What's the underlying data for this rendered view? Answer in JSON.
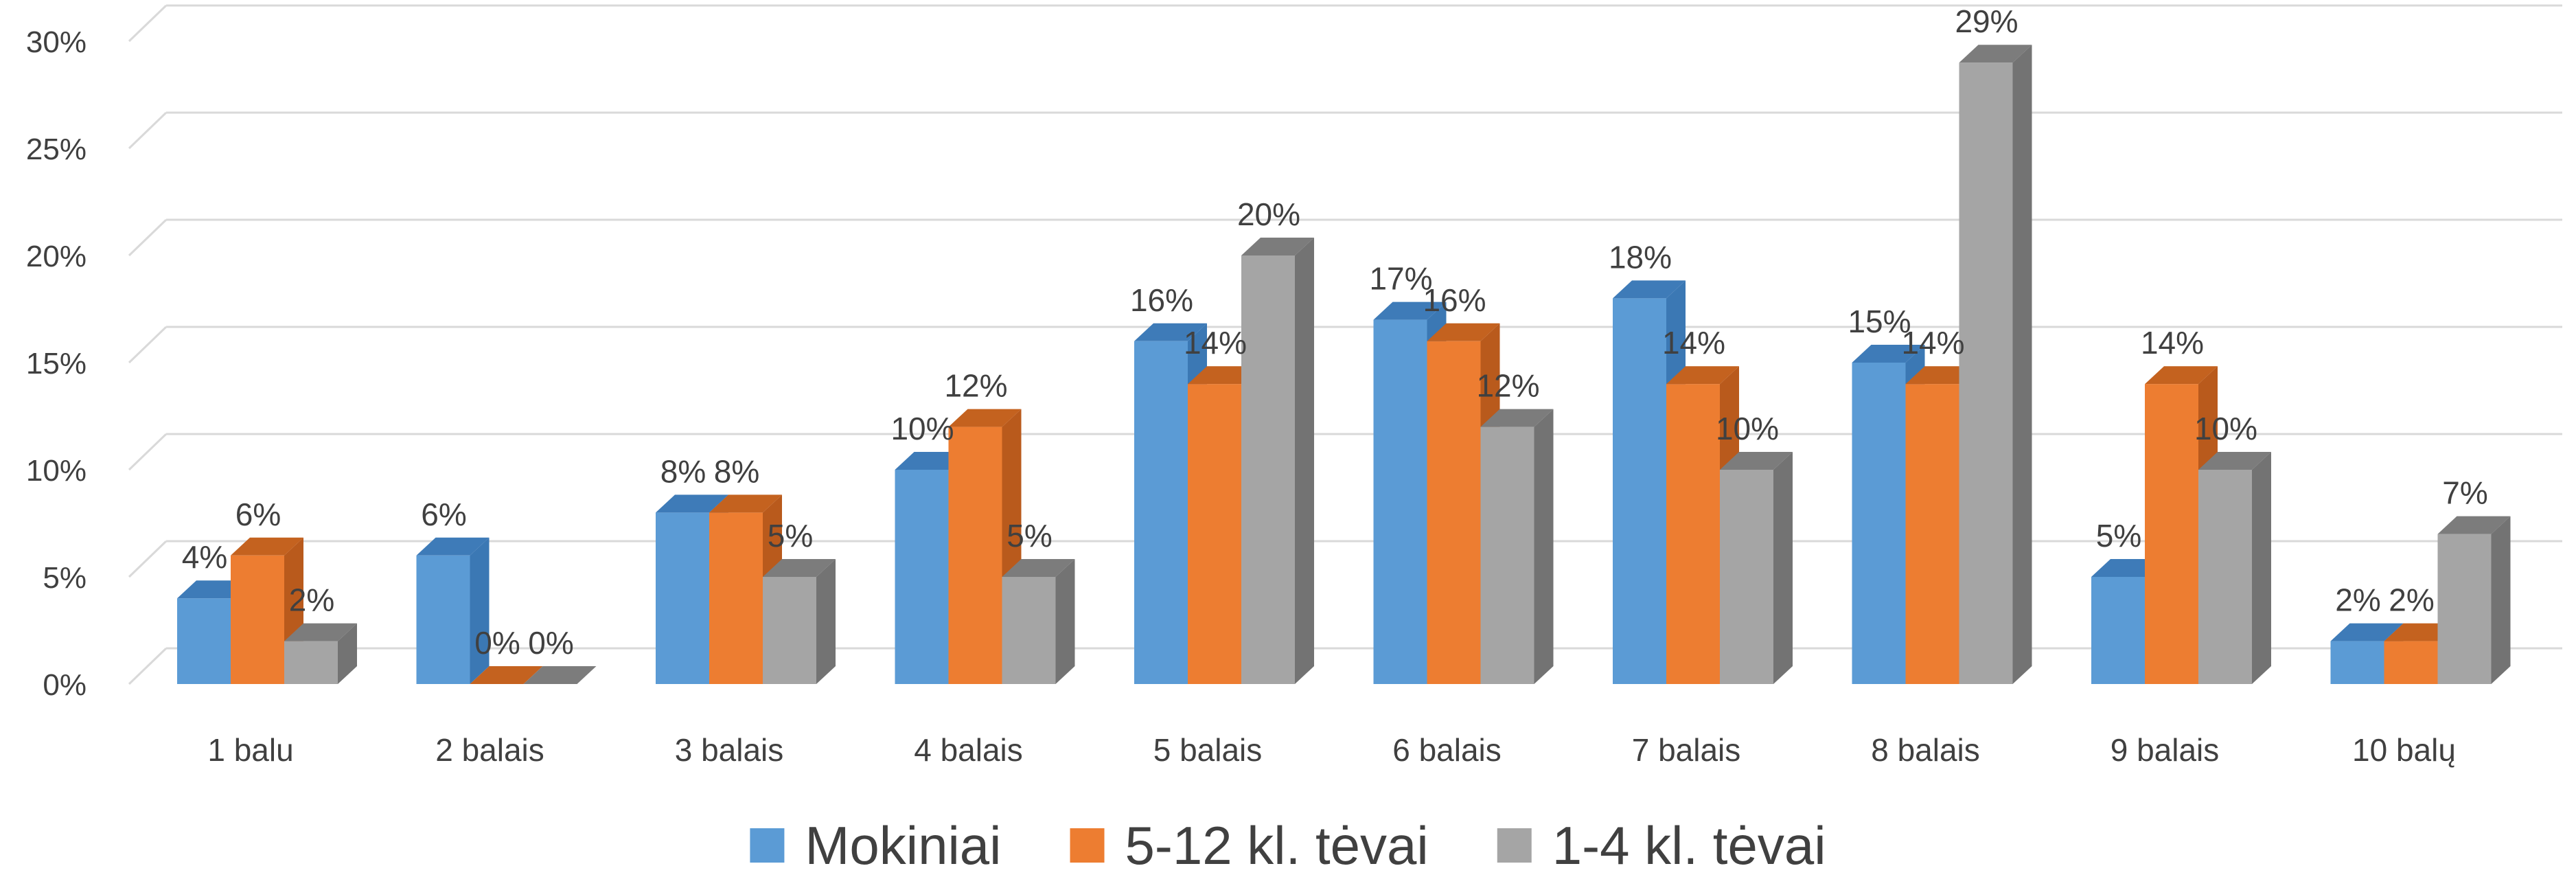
{
  "chart_data": {
    "type": "bar",
    "categories": [
      "1 balu",
      "2 balais",
      "3 balais",
      "4 balais",
      "5 balais",
      "6 balais",
      "7 balais",
      "8 balais",
      "9 balais",
      "10 balų"
    ],
    "series": [
      {
        "name": "Mokiniai",
        "color": "#5B9BD5",
        "side": "#3B78B4",
        "top": "#3E7BB8",
        "values": [
          4,
          6,
          8,
          10,
          16,
          17,
          18,
          15,
          5,
          2
        ],
        "labels": [
          "4%",
          "6%",
          "8%",
          "10%",
          "16%",
          "17%",
          "18%",
          "15%",
          "5%",
          "2%"
        ]
      },
      {
        "name": "5-12 kl. tėvai",
        "color": "#ED7D31",
        "side": "#B95A1C",
        "top": "#C4621F",
        "values": [
          6,
          0,
          8,
          12,
          14,
          16,
          14,
          14,
          14,
          2
        ],
        "labels": [
          "6%",
          "0%",
          "8%",
          "12%",
          "14%",
          "16%",
          "14%",
          "14%",
          "14%",
          "2%"
        ]
      },
      {
        "name": "1-4 kl. tėvai",
        "color": "#A5A5A5",
        "side": "#737373",
        "top": "#7C7C7C",
        "values": [
          2,
          0,
          5,
          5,
          20,
          12,
          10,
          29,
          10,
          7
        ],
        "labels": [
          "2%",
          "0%",
          "5%",
          "5%",
          "20%",
          "12%",
          "10%",
          "29%",
          "10%",
          "7%"
        ]
      }
    ],
    "y_ticks": [
      "0%",
      "5%",
      "10%",
      "15%",
      "20%",
      "25%",
      "30%"
    ],
    "ylim": [
      0,
      30
    ],
    "grid": true,
    "legend_position": "bottom",
    "projection": "3d-clustered-column"
  }
}
